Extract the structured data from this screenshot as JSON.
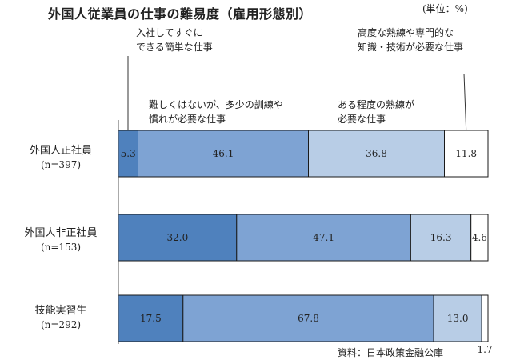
{
  "chart_data": {
    "type": "bar",
    "orientation": "horizontal",
    "stacked": true,
    "title": "外国人従業員の仕事の難易度（雇用形態別）",
    "unit": "(単位：%)",
    "source": "資料：日本政策金融公庫",
    "categories": [
      {
        "name": "外国人正社員",
        "n": "(n=397)"
      },
      {
        "name": "外国人非正社員",
        "n": "(n=153)"
      },
      {
        "name": "技能実習生",
        "n": "(n=292)"
      }
    ],
    "series": [
      {
        "name": "入社してすぐにできる簡単な仕事",
        "label_lines": [
          "入社してすぐに",
          "できる簡単な仕事"
        ],
        "color": "#4f81bd",
        "values": [
          5.3,
          32.0,
          17.5
        ],
        "labels": [
          "5.3",
          "32.0",
          "17.5"
        ]
      },
      {
        "name": "難しくはないが、多少の訓練や慣れが必要な仕事",
        "label_lines": [
          "難しくはないが、多少の訓練や",
          "慣れが必要な仕事"
        ],
        "color": "#7ea3d3",
        "values": [
          46.1,
          47.1,
          67.8
        ],
        "labels": [
          "46.1",
          "47.1",
          "67.8"
        ]
      },
      {
        "name": "ある程度の熟練が必要な仕事",
        "label_lines": [
          "ある程度の熟練が",
          "必要な仕事"
        ],
        "color": "#b8cde6",
        "values": [
          36.8,
          16.3,
          13.0
        ],
        "labels": [
          "36.8",
          "16.3",
          "13.0"
        ]
      },
      {
        "name": "高度な熟練や専門的な知識・技術が必要な仕事",
        "label_lines": [
          "高度な熟練や専門的な",
          "知識・技術が必要な仕事"
        ],
        "color": "#ffffff",
        "values": [
          11.8,
          4.6,
          1.7
        ],
        "labels": [
          "11.8",
          "4.6",
          "1.7"
        ]
      }
    ],
    "xlim": [
      0,
      100
    ],
    "grid": false,
    "legend": "annotations above bars"
  }
}
